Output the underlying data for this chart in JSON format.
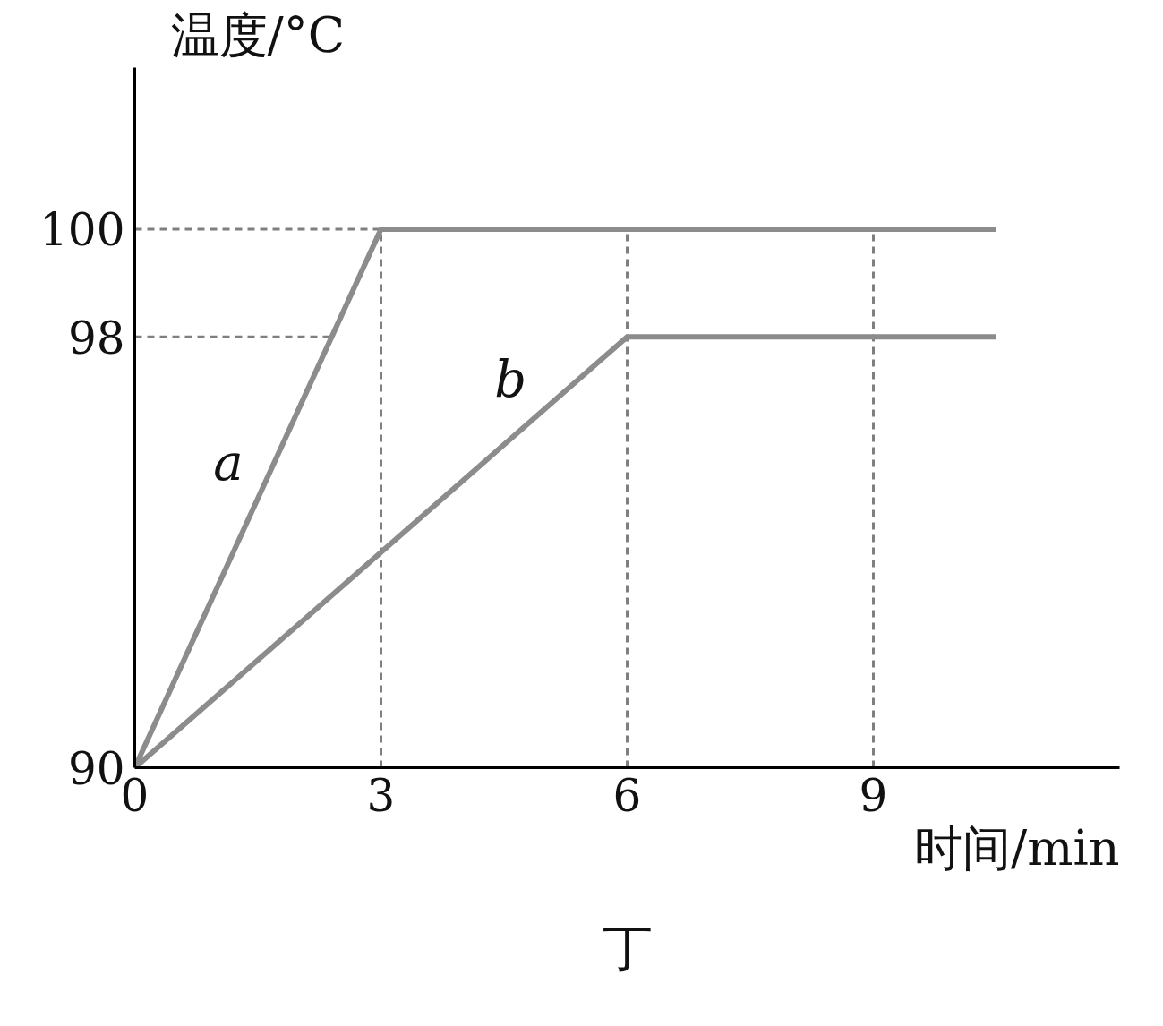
{
  "chart_data": {
    "type": "line",
    "xlabel": "时间/min",
    "ylabel": "温度/°C",
    "xlim": [
      0,
      12
    ],
    "ylim": [
      90,
      103
    ],
    "xticks": [
      0,
      3,
      6,
      9
    ],
    "yticks": [
      90,
      98,
      100
    ],
    "series": [
      {
        "name": "a",
        "color": "#8c8c8c",
        "x": [
          0,
          3,
          10.5
        ],
        "values": [
          90,
          100,
          100
        ]
      },
      {
        "name": "b",
        "color": "#8c8c8c",
        "x": [
          0,
          6,
          10.5
        ],
        "values": [
          90,
          98,
          98
        ]
      }
    ],
    "ref_lines": [
      {
        "axis": "y",
        "value": 100,
        "color": "#7f7f7f",
        "line_style": "dashed"
      },
      {
        "axis": "y",
        "value": 98,
        "color": "#7f7f7f",
        "line_style": "dashed"
      },
      {
        "axis": "x",
        "value": 3,
        "color": "#7f7f7f",
        "line_style": "dashed"
      },
      {
        "axis": "x",
        "value": 6,
        "color": "#7f7f7f",
        "line_style": "dashed"
      },
      {
        "axis": "x",
        "value": 9,
        "color": "#7f7f7f",
        "line_style": "dashed"
      }
    ],
    "annotations": [
      "丁"
    ],
    "grid": false,
    "marker": "none",
    "line_style": "solid"
  }
}
